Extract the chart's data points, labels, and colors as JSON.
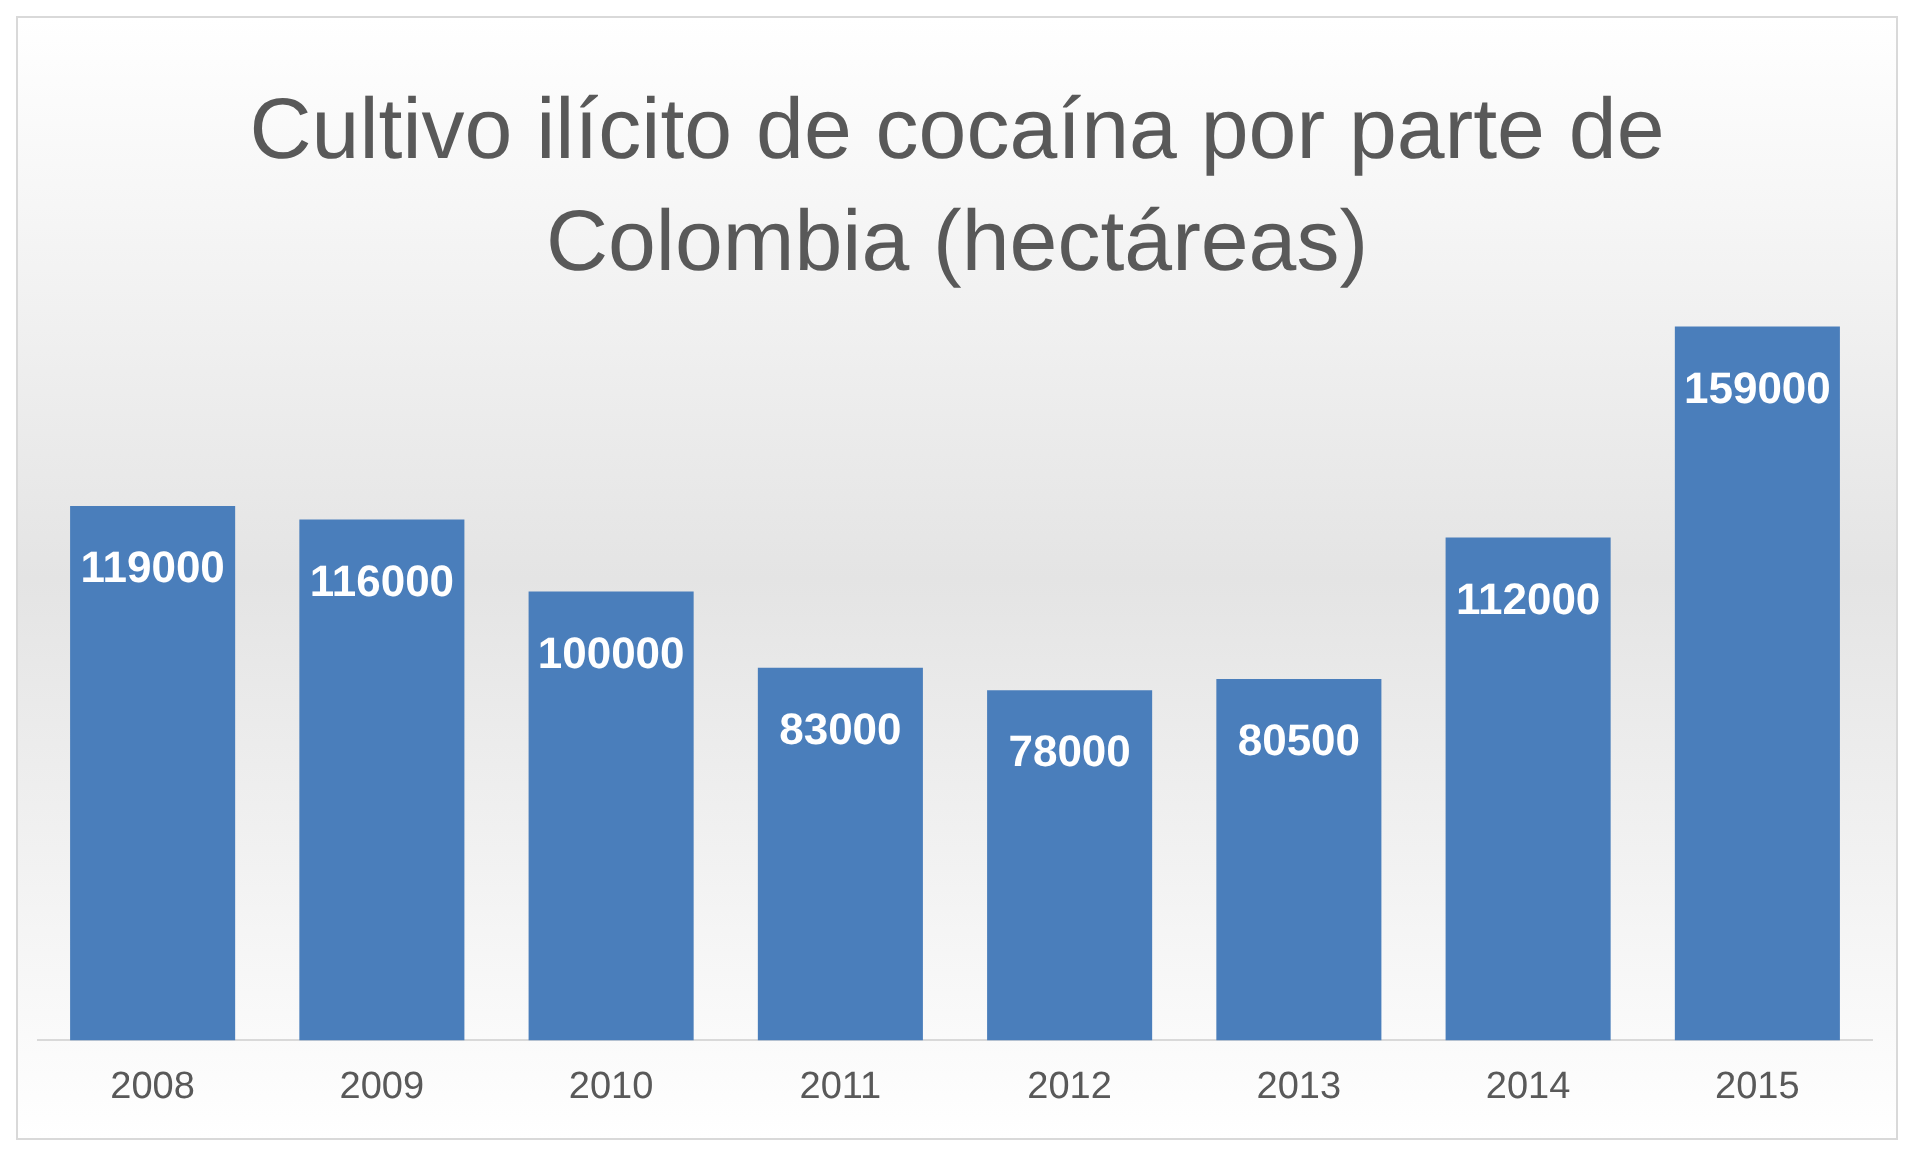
{
  "chart_data": {
    "type": "bar",
    "title": "Cultivo ilícito de cocaína por parte de Colombia (hectáreas)",
    "categories": [
      "2008",
      "2009",
      "2010",
      "2011",
      "2012",
      "2013",
      "2014",
      "2015"
    ],
    "values": [
      119000,
      116000,
      100000,
      83000,
      78000,
      80500,
      112000,
      159000
    ],
    "color": "#4a7ebb",
    "data_labels": true,
    "grid": false,
    "legend": false
  }
}
